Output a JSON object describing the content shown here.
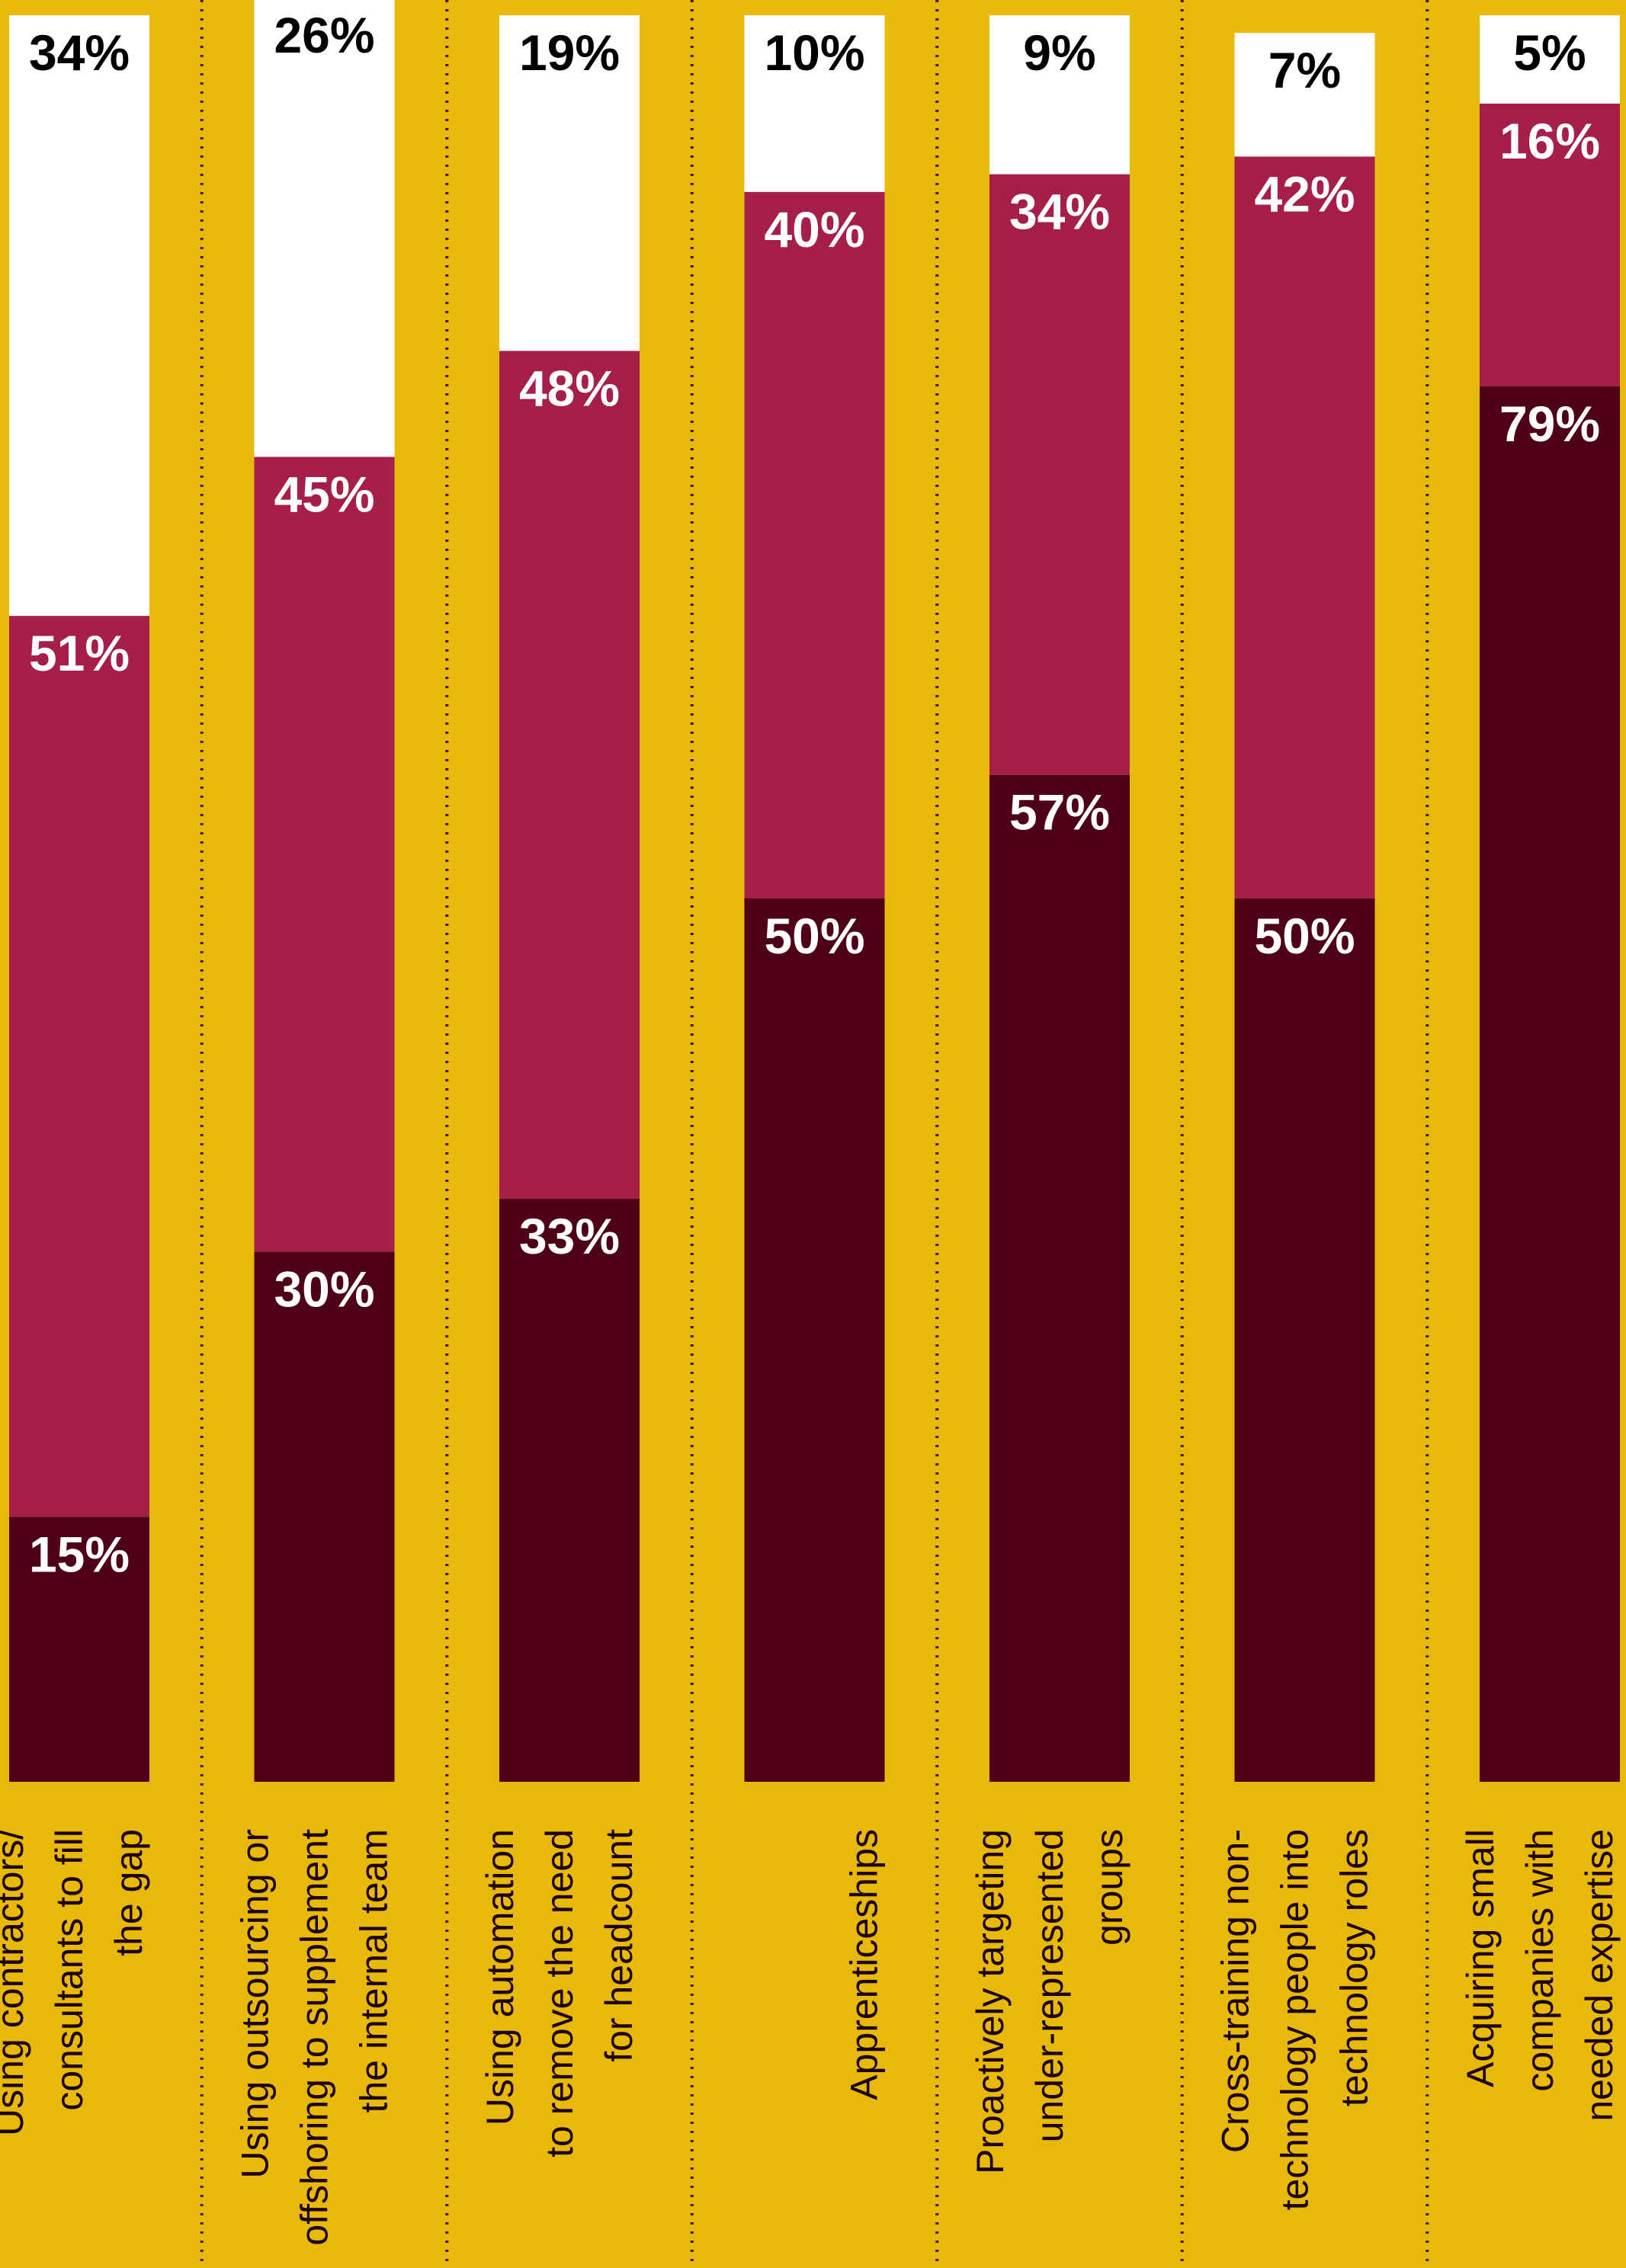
{
  "chart_data": {
    "type": "bar",
    "stacked": true,
    "orientation": "vertical",
    "categories": [
      [
        "Using contractors/",
        "consultants to fill",
        "the gap"
      ],
      [
        "Using outsourcing or",
        "offshoring to supplement",
        "the internal team"
      ],
      [
        "Using automation",
        "to remove the need",
        "for headcount"
      ],
      [
        "Apprenticeships"
      ],
      [
        "Proactively targeting",
        "under-represented",
        "groups"
      ],
      [
        "Cross-training non-",
        "technology people into",
        "technology roles"
      ],
      [
        "Acquiring small",
        "companies with",
        "needed expertise"
      ]
    ],
    "series": [
      {
        "values": [
          15,
          30,
          33,
          50,
          57,
          50,
          79
        ],
        "labels": [
          "15%",
          "30%",
          "33%",
          "50%",
          "57%",
          "50%",
          "79%"
        ]
      },
      {
        "values": [
          51,
          45,
          48,
          40,
          34,
          42,
          16
        ],
        "labels": [
          "51%",
          "45%",
          "48%",
          "40%",
          "34%",
          "42%",
          "16%"
        ]
      },
      {
        "values": [
          34,
          26,
          19,
          10,
          9,
          7,
          5
        ],
        "labels": [
          "34%",
          "26%",
          "19%",
          "10%",
          "9%",
          "7%",
          "5%"
        ]
      }
    ],
    "ylim": [
      0,
      100
    ],
    "grid": false,
    "legend": "none"
  },
  "colors": {
    "background": "#E8B80A",
    "bottom_segment": "#4E0016",
    "middle_segment": "#A61F48",
    "top_segment": "#FFFFFF",
    "divider": "#3a1a00"
  }
}
